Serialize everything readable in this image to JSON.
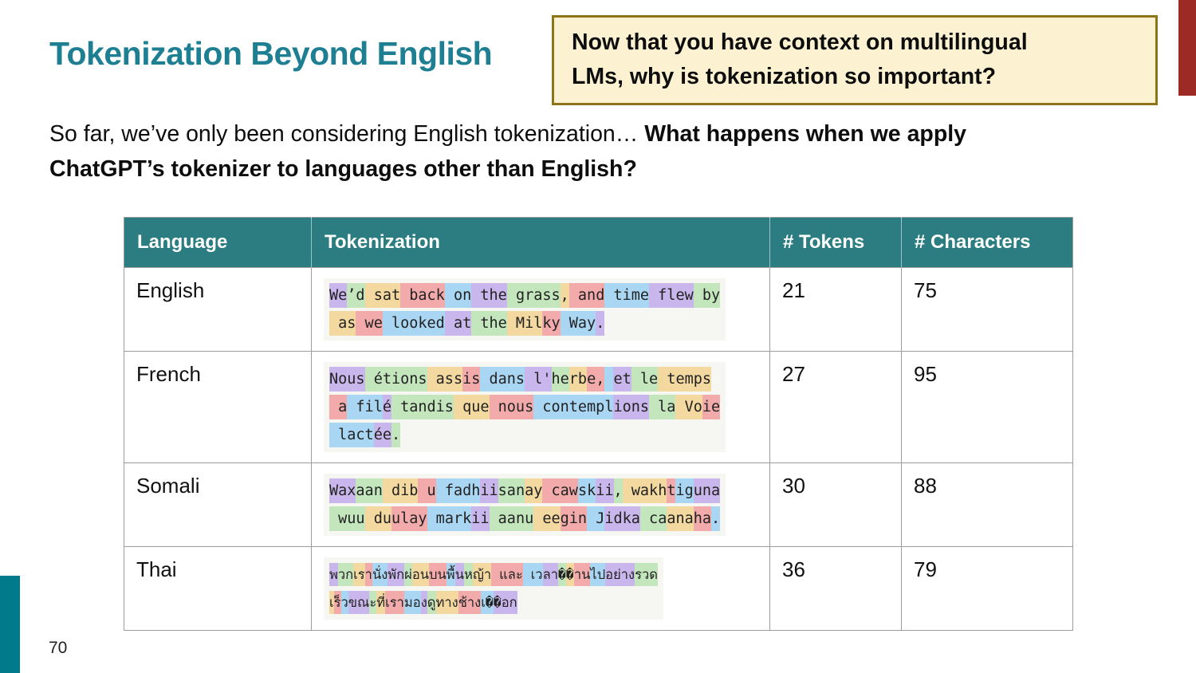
{
  "slide": {
    "title": "Tokenization Beyond English",
    "page_number": "70"
  },
  "callout": {
    "lines": [
      "Now that you have context on multilingual",
      "LMs, why is tokenization so important?"
    ]
  },
  "intro": {
    "normal": "So far, we’ve only been considering English tokenization… ",
    "bold": "What happens when we apply ChatGPT’s tokenizer to languages other than English?"
  },
  "token_colors": [
    "#c9b6ec",
    "#c3e6bc",
    "#f3d8a0",
    "#f2aaaa",
    "#a9d6f3"
  ],
  "accent_colors": {
    "title_teal": "#1e7f93",
    "header_teal": "#2b7d81",
    "callout_bg": "#fcf2d2",
    "callout_border": "#8d7517",
    "red_bar": "#9e2a25",
    "teal_bar": "#017a8c"
  },
  "table": {
    "headers": [
      "Language",
      "Tokenization",
      "# Tokens",
      "# Characters"
    ],
    "rows": [
      {
        "language": "English",
        "num_tokens": "21",
        "num_characters": "75",
        "token_lines": [
          [
            "We",
            "’d",
            " sat",
            " back",
            " on",
            " the",
            " grass",
            ",",
            " and",
            " time",
            " flew",
            " by"
          ],
          [
            " as",
            " we",
            " looked",
            " at",
            " the",
            " Mil",
            "ky",
            " Way",
            "."
          ]
        ]
      },
      {
        "language": "French",
        "num_tokens": "27",
        "num_characters": "95",
        "token_lines": [
          [
            "Nous",
            " étions",
            " ass",
            "is",
            " dans",
            " l'",
            "he",
            "rb",
            "e,",
            " ",
            "et",
            " le",
            " temps"
          ],
          [
            " a",
            " fil",
            "é",
            " tandis",
            " que",
            " nous",
            " contempl",
            "ions",
            " la",
            " Vo",
            "ie"
          ],
          [
            " lact",
            "ée",
            "."
          ]
        ]
      },
      {
        "language": "Somali",
        "num_tokens": "30",
        "num_characters": "88",
        "token_lines": [
          [
            "Wax",
            "aan",
            " dib",
            " u",
            " fadh",
            "ii",
            "san",
            "ay",
            " caw",
            "sk",
            "ii",
            ",",
            " wakh",
            "t",
            "ig",
            "una"
          ],
          [
            " wuu",
            " du",
            "ulay",
            " mark",
            "ii",
            " aanu",
            " ee",
            "gin",
            " J",
            "idka",
            " ca",
            "ana",
            "ha",
            "."
          ]
        ]
      },
      {
        "language": "Thai",
        "num_tokens": "36",
        "num_characters": "79",
        "token_lines": [
          [
            "พ",
            "วก",
            "เร",
            "า",
            "นั่ง",
            "พัก",
            "ผ่",
            "อน",
            "บน",
            "พื้",
            "น",
            "ห",
            "ญ้า",
            " และ",
            " เว",
            "ลา",
            "�",
            "�",
            "าน",
            "ไป",
            "อย่าง",
            "รวด"
          ],
          [
            "เ",
            "ร็",
            "ว",
            "ขณ",
            "ะ",
            "ที่",
            "เรา",
            "มอ",
            "ง",
            "ดู",
            "ทาง",
            "ช้าง",
            "เ�",
            "�อก"
          ]
        ]
      }
    ]
  }
}
